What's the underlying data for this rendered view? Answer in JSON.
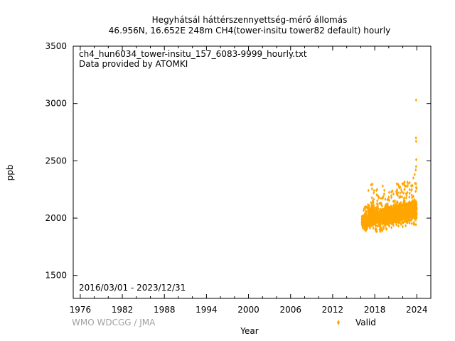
{
  "chart_data": {
    "type": "scatter",
    "title": "Hegyhátsál háttérszennyettség-mérő állomás",
    "subtitle": "46.956N, 16.652E 248m    CH4(tower-insitu tower82 default) hourly",
    "file_label": "ch4_hun6034_tower-insitu_157_6083-9999_hourly.txt",
    "provider_label": "Data provided by ATOMKI",
    "period_label": "2016/03/01 - 2023/12/31",
    "xlabel": "Year",
    "ylabel": "ppb",
    "xlim": [
      1975,
      2026
    ],
    "ylim": [
      1300,
      3500
    ],
    "x_ticks": [
      1976,
      1982,
      1988,
      1994,
      2000,
      2006,
      2012,
      2018,
      2024
    ],
    "y_ticks": [
      1500,
      2000,
      2500,
      3000,
      3500
    ],
    "grid": false,
    "legend_position": "bottom-right",
    "watermark": "WMO WDCGG / JMA",
    "colors": {
      "valid": "#FFA500"
    },
    "series": [
      {
        "name": "Valid",
        "approx_ranges": [
          {
            "x": [
              2016.17,
              2017.0
            ],
            "y": [
              1880,
              2100
            ]
          },
          {
            "x": [
              2017.0,
              2018.0
            ],
            "y": [
              1875,
              2300
            ]
          },
          {
            "x": [
              2018.0,
              2019.0
            ],
            "y": [
              1880,
              2250
            ]
          },
          {
            "x": [
              2019.0,
              2020.0
            ],
            "y": [
              1890,
              2260
            ]
          },
          {
            "x": [
              2020.0,
              2021.0
            ],
            "y": [
              1900,
              2250
            ]
          },
          {
            "x": [
              2021.0,
              2022.0
            ],
            "y": [
              1920,
              2300
            ]
          },
          {
            "x": [
              2022.0,
              2023.0
            ],
            "y": [
              1930,
              2320
            ]
          },
          {
            "x": [
              2023.0,
              2024.0
            ],
            "y": [
              1940,
              2320
            ]
          }
        ],
        "outliers": [
          {
            "x": 2023.9,
            "y": 3030
          },
          {
            "x": 2023.88,
            "y": 2700
          },
          {
            "x": 2023.9,
            "y": 2670
          },
          {
            "x": 2023.92,
            "y": 2510
          },
          {
            "x": 2023.9,
            "y": 2450
          },
          {
            "x": 2023.85,
            "y": 2420
          },
          {
            "x": 2023.7,
            "y": 2380
          },
          {
            "x": 2023.5,
            "y": 2350
          },
          {
            "x": 2017.9,
            "y": 2240
          },
          {
            "x": 2019.15,
            "y": 2280
          },
          {
            "x": 2021.95,
            "y": 2300
          }
        ]
      }
    ]
  }
}
